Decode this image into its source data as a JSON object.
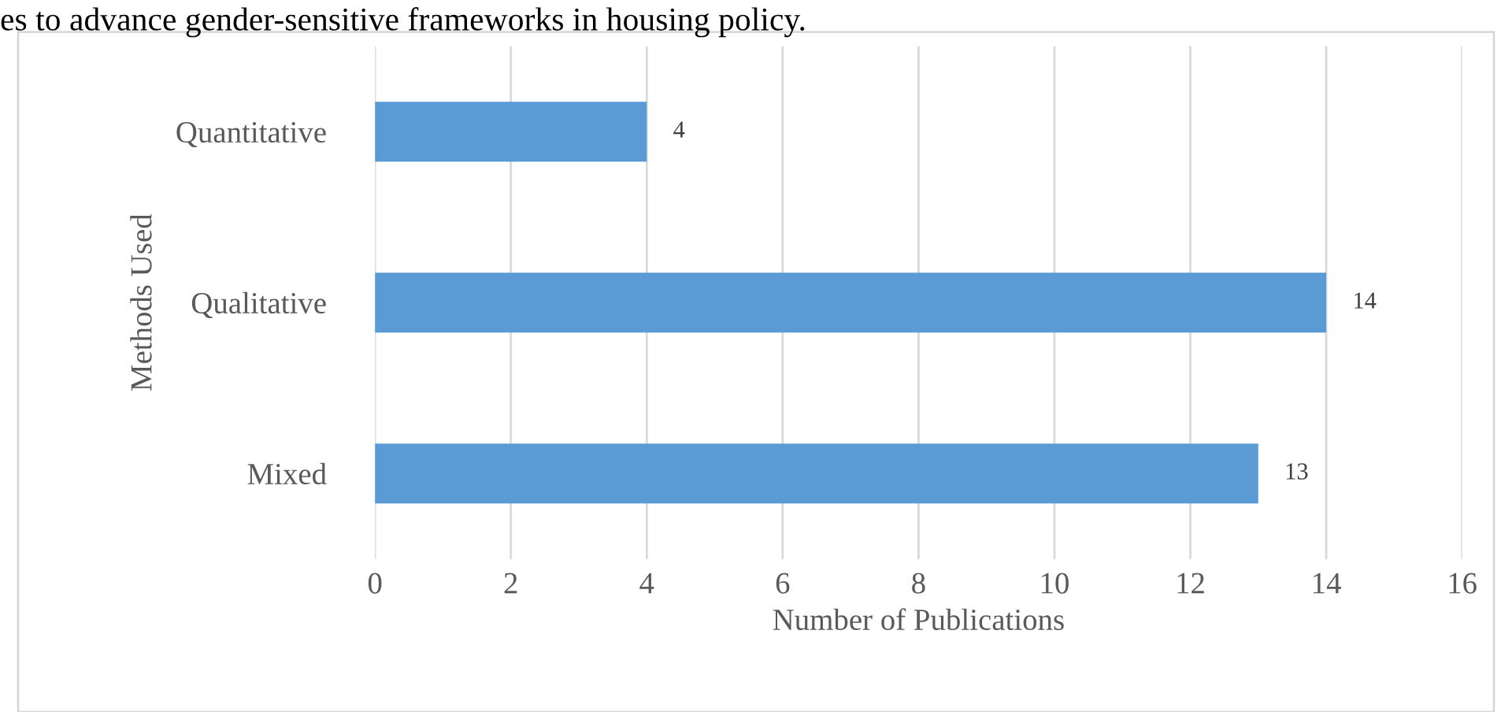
{
  "chart_data": {
    "type": "bar",
    "orientation": "horizontal",
    "xlabel": "Number of Publications",
    "ylabel": "Methods Used",
    "categories": [
      "Quantitative",
      "Qualitative",
      "Mixed"
    ],
    "values": [
      4,
      14,
      13
    ],
    "color": "#5b9bd5",
    "xlim": [
      0,
      16
    ],
    "xticks": [
      0,
      2,
      4,
      6,
      8,
      10,
      12,
      14,
      16
    ],
    "grid": "x",
    "data_labels": true,
    "annotations": [
      "es to advance gender-sensitive frameworks in housing policy."
    ]
  }
}
